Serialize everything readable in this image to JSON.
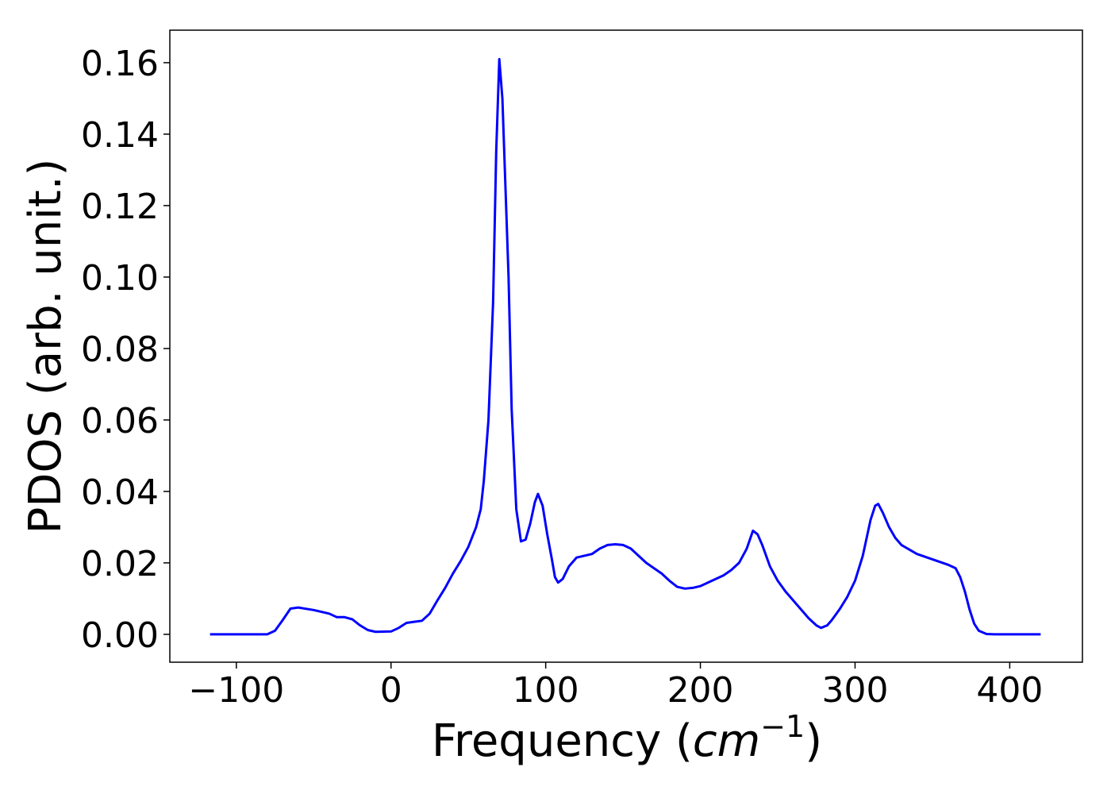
{
  "chart_data": {
    "type": "line",
    "xlabel": {
      "text": "Frequency (",
      "italic": "cm",
      "sup": "−1",
      "end": ")"
    },
    "ylabel": "PDOS (arb. unit.)",
    "color": "#0000ff",
    "xlim": [
      -143,
      447
    ],
    "ylim": [
      -0.0078,
      0.1691
    ],
    "xticks": [
      {
        "value": -100,
        "label": "−100"
      },
      0,
      100,
      200,
      300,
      400
    ],
    "yticks": [
      {
        "value": 0,
        "label": "0.00"
      },
      {
        "value": 0.02,
        "label": "0.02"
      },
      {
        "value": 0.04,
        "label": "0.04"
      },
      {
        "value": 0.06,
        "label": "0.06"
      },
      {
        "value": 0.08,
        "label": "0.08"
      },
      {
        "value": 0.1,
        "label": "0.10"
      },
      {
        "value": 0.12,
        "label": "0.12"
      },
      {
        "value": 0.14,
        "label": "0.14"
      },
      {
        "value": 0.16,
        "label": "0.16"
      }
    ],
    "x": [
      -117,
      -80,
      -75,
      -70,
      -65,
      -60,
      -50,
      -40,
      -35,
      -30,
      -25,
      -20,
      -15,
      -10,
      0,
      5,
      10,
      15,
      20,
      25,
      30,
      35,
      40,
      45,
      50,
      55,
      58,
      60,
      63,
      66,
      68,
      70,
      72,
      76,
      78,
      81,
      84,
      87,
      90,
      93,
      95,
      98,
      101,
      104,
      106,
      108,
      111,
      115,
      120,
      125,
      130,
      135,
      140,
      145,
      150,
      155,
      160,
      165,
      170,
      175,
      180,
      185,
      190,
      195,
      200,
      205,
      210,
      215,
      220,
      225,
      230,
      234,
      237,
      240,
      245,
      250,
      255,
      260,
      265,
      270,
      275,
      278,
      282,
      285,
      290,
      295,
      300,
      305,
      310,
      313,
      315,
      318,
      322,
      326,
      330,
      340,
      350,
      360,
      365,
      368,
      371,
      374,
      377,
      380,
      385,
      390,
      420
    ],
    "values": [
      0,
      0,
      0.001,
      0.004,
      0.0072,
      0.0075,
      0.0068,
      0.0058,
      0.0048,
      0.0048,
      0.0042,
      0.0025,
      0.0012,
      0.0007,
      0.0008,
      0.0018,
      0.0032,
      0.0035,
      0.0038,
      0.0058,
      0.0095,
      0.013,
      0.017,
      0.0205,
      0.0245,
      0.03,
      0.035,
      0.043,
      0.06,
      0.093,
      0.135,
      0.161,
      0.15,
      0.1,
      0.063,
      0.035,
      0.026,
      0.0265,
      0.031,
      0.037,
      0.0393,
      0.036,
      0.028,
      0.021,
      0.016,
      0.0145,
      0.0155,
      0.019,
      0.0215,
      0.022,
      0.0225,
      0.024,
      0.025,
      0.0252,
      0.025,
      0.024,
      0.022,
      0.02,
      0.0185,
      0.017,
      0.015,
      0.0133,
      0.0128,
      0.013,
      0.0135,
      0.0145,
      0.0155,
      0.0165,
      0.018,
      0.02,
      0.024,
      0.029,
      0.028,
      0.025,
      0.019,
      0.015,
      0.012,
      0.0095,
      0.007,
      0.0045,
      0.0025,
      0.0018,
      0.0025,
      0.004,
      0.007,
      0.0105,
      0.015,
      0.022,
      0.032,
      0.036,
      0.0365,
      0.034,
      0.03,
      0.027,
      0.025,
      0.0225,
      0.021,
      0.0195,
      0.0185,
      0.016,
      0.012,
      0.007,
      0.003,
      0.001,
      0.0001,
      0,
      0
    ]
  }
}
